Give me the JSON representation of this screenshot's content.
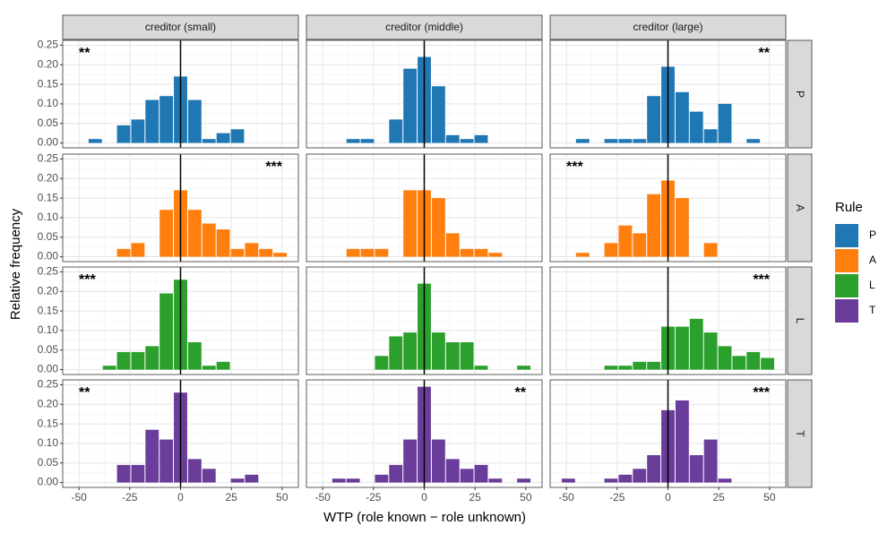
{
  "chart_data": {
    "type": "histogram",
    "x_label": "WTP (role known − role unknown)",
    "y_label": "Relative frequency",
    "legend_title": "Rule",
    "columns": [
      "creditor (small)",
      "creditor (middle)",
      "creditor (large)"
    ],
    "bins": [
      -52.5,
      -45.5,
      -38.5,
      -31.5,
      -24.5,
      -17.5,
      -10.5,
      -3.5,
      3.5,
      10.5,
      17.5,
      24.5,
      31.5,
      38.5,
      45.5,
      52.5
    ],
    "xlim": [
      -58,
      58
    ],
    "xticks": [
      -50,
      -25,
      0,
      25,
      50
    ],
    "ylim": [
      -0.0125,
      0.2625
    ],
    "yticks": [
      {
        "value": 0,
        "label": "0.00"
      },
      {
        "value": 0.05,
        "label": "0.05"
      },
      {
        "value": 0.1,
        "label": "0.10"
      },
      {
        "value": 0.15,
        "label": "0.15"
      },
      {
        "value": 0.2,
        "label": "0.20"
      },
      {
        "value": 0.25,
        "label": "0.25"
      }
    ],
    "vline": 0,
    "grid": true,
    "series": [
      {
        "name": "P",
        "color": "#1f78b4",
        "panels": [
          [
            0,
            0.01,
            0,
            0.045,
            0.06,
            0.11,
            0.12,
            0.17,
            0.11,
            0.01,
            0.025,
            0.035,
            0,
            0,
            0
          ],
          [
            0,
            0,
            0.01,
            0.01,
            0,
            0.06,
            0.19,
            0.22,
            0.145,
            0.02,
            0.01,
            0.02,
            0,
            0,
            0
          ],
          [
            0,
            0.01,
            0,
            0.01,
            0.01,
            0.01,
            0.12,
            0.195,
            0.13,
            0.08,
            0.035,
            0.1,
            0,
            0.01,
            0
          ]
        ],
        "annotations": [
          {
            "column": 0,
            "text": "**",
            "corner": "left"
          },
          {
            "column": 2,
            "text": "**",
            "corner": "right"
          }
        ]
      },
      {
        "name": "A",
        "color": "#ff7f0e",
        "panels": [
          [
            0,
            0,
            0,
            0.02,
            0.035,
            0,
            0.12,
            0.17,
            0.12,
            0.085,
            0.07,
            0.02,
            0.035,
            0.02,
            0.01
          ],
          [
            0,
            0,
            0.02,
            0.02,
            0.02,
            0,
            0.17,
            0.17,
            0.15,
            0.06,
            0.02,
            0.02,
            0.01,
            0,
            0
          ],
          [
            0,
            0.01,
            0,
            0.035,
            0.08,
            0.06,
            0.16,
            0.195,
            0.15,
            0,
            0.035,
            0,
            0,
            0,
            0
          ]
        ],
        "annotations": [
          {
            "column": 0,
            "text": "***",
            "corner": "right"
          },
          {
            "column": 2,
            "text": "***",
            "corner": "left"
          }
        ]
      },
      {
        "name": "L",
        "color": "#2ca02c",
        "panels": [
          [
            0,
            0,
            0.01,
            0.045,
            0.045,
            0.06,
            0.195,
            0.23,
            0.07,
            0.01,
            0.02,
            0,
            0,
            0,
            0
          ],
          [
            0,
            0,
            0,
            0,
            0.035,
            0.085,
            0.095,
            0.22,
            0.095,
            0.07,
            0.07,
            0.01,
            0,
            0,
            0.01
          ],
          [
            0,
            0,
            0,
            0.01,
            0.01,
            0.02,
            0.02,
            0.11,
            0.11,
            0.13,
            0.095,
            0.06,
            0.035,
            0.045,
            0.03
          ]
        ],
        "annotations": [
          {
            "column": 0,
            "text": "***",
            "corner": "left"
          },
          {
            "column": 2,
            "text": "***",
            "corner": "right"
          }
        ]
      },
      {
        "name": "T",
        "color": "#6a3d9a",
        "panels": [
          [
            0,
            0,
            0,
            0.045,
            0.045,
            0.135,
            0.11,
            0.23,
            0.06,
            0.035,
            0,
            0.01,
            0.02,
            0,
            0
          ],
          [
            0,
            0.01,
            0.01,
            0,
            0.02,
            0.045,
            0.11,
            0.245,
            0.11,
            0.06,
            0.035,
            0.045,
            0.01,
            0,
            0.01
          ],
          [
            0.01,
            0,
            0,
            0.01,
            0.02,
            0.035,
            0.07,
            0.185,
            0.21,
            0.07,
            0.11,
            0.01,
            0,
            0,
            0
          ]
        ],
        "annotations": [
          {
            "column": 0,
            "text": "**",
            "corner": "left"
          },
          {
            "column": 1,
            "text": "**",
            "corner": "right"
          },
          {
            "column": 2,
            "text": "***",
            "corner": "right"
          }
        ]
      }
    ]
  }
}
